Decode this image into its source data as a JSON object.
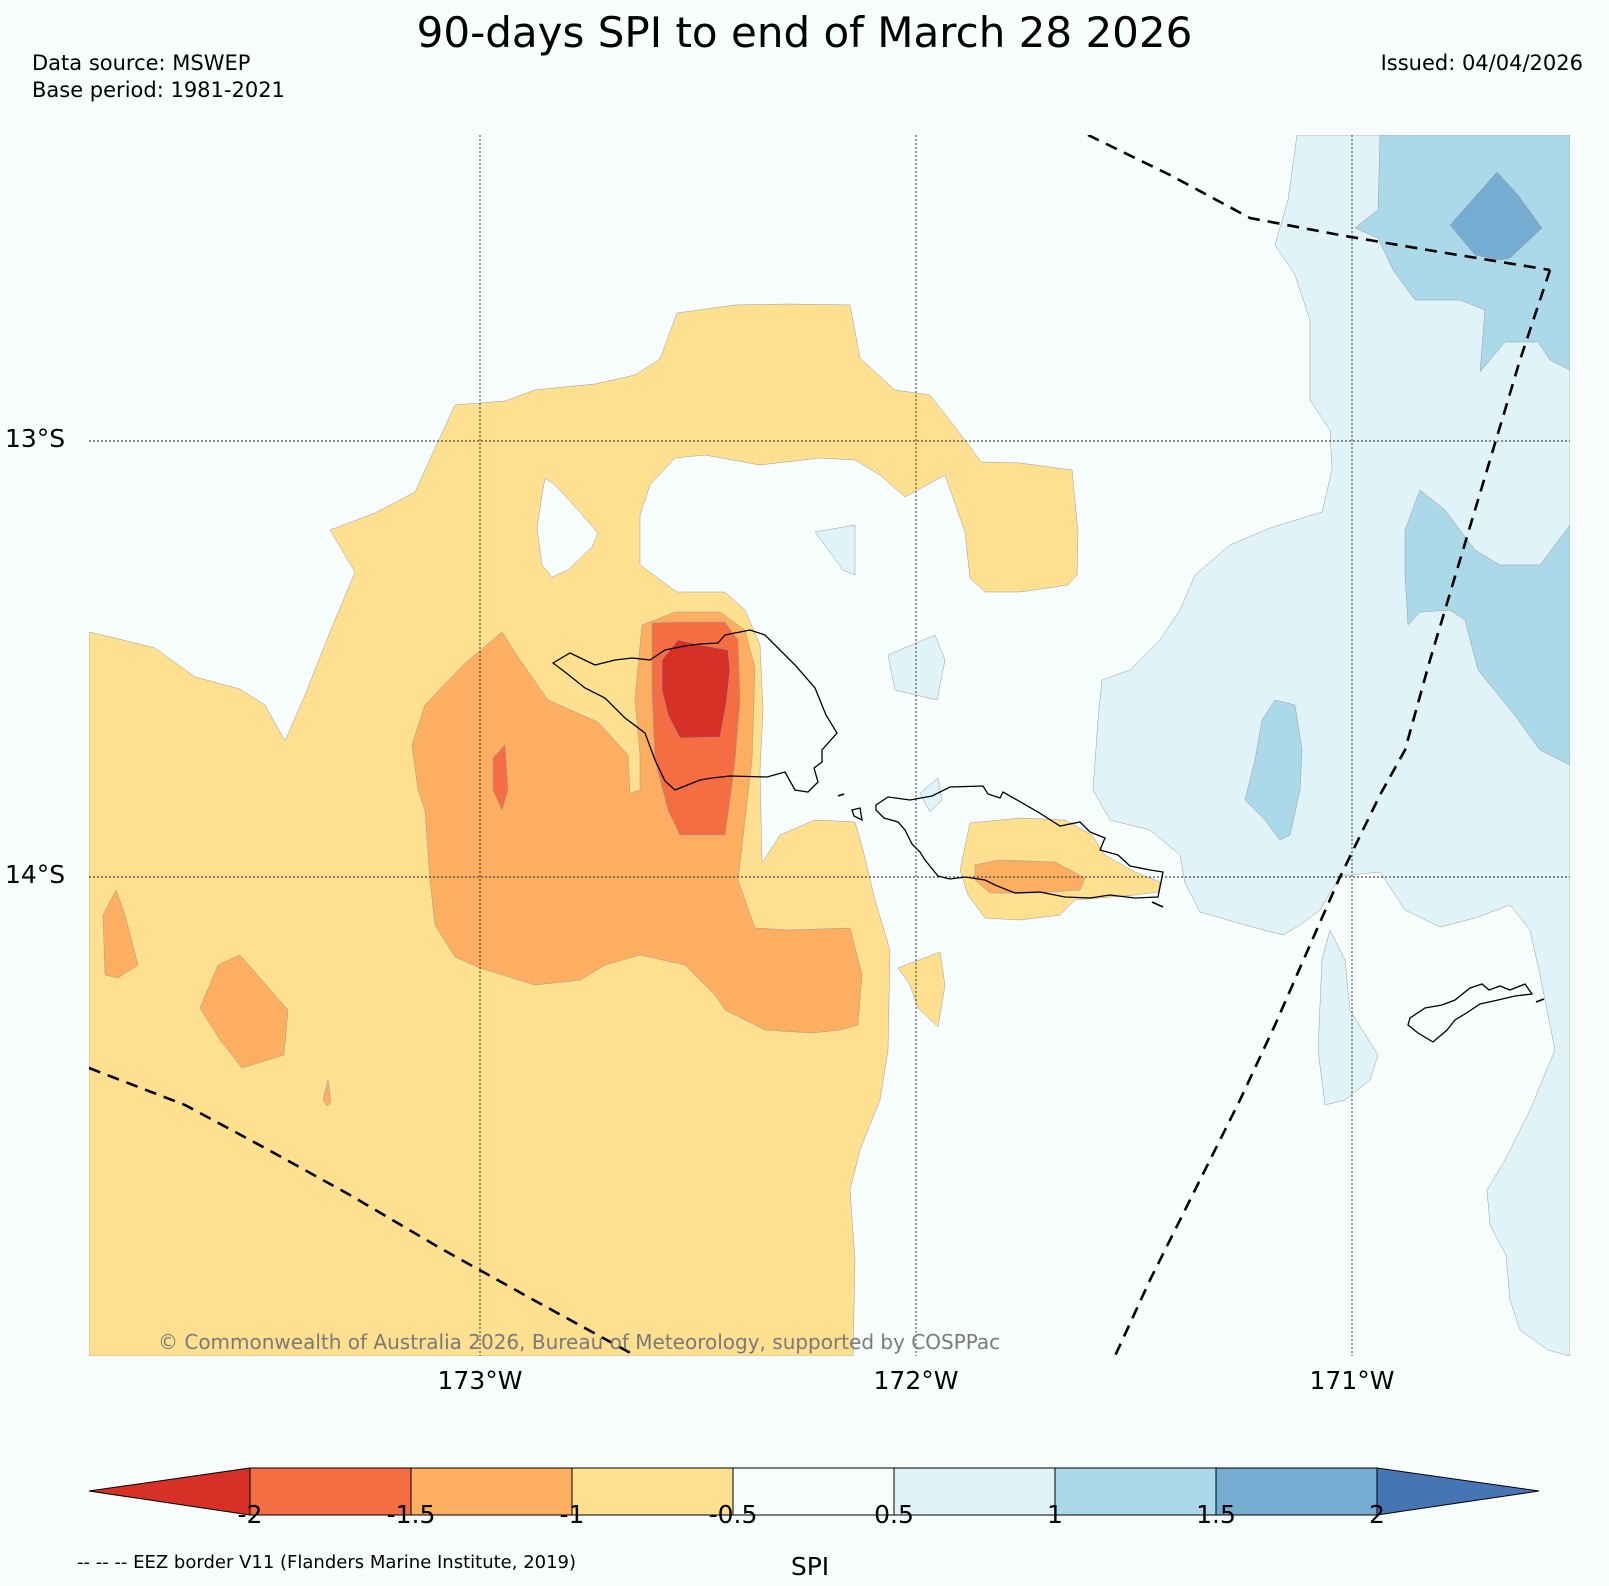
{
  "title": "90-days SPI to end of March 28 2026",
  "meta": {
    "data_source": "Data source: MSWEP",
    "base_period": "Base period: 1981-2021",
    "issued": "Issued: 04/04/2026"
  },
  "map": {
    "lat_labels": [
      "13°S",
      "14°S"
    ],
    "lon_labels": [
      "173°W",
      "172°W",
      "171°W"
    ],
    "copyright": "© Commonwealth of Australia 2026, Bureau of Meteorology, supported by COSPPac"
  },
  "colors": {
    "lt_m2": "#d73027",
    "m2_m15": "#f46d43",
    "m15_m1": "#fdae61",
    "m1_m05": "#fee090",
    "m05_05": "#f7fcfd",
    "p05_1": "#e0f3f8",
    "p1_15": "#abd9e9",
    "p15_2": "#74add1",
    "gt_2": "#4575b4"
  },
  "colorbar": {
    "ticks": [
      "-2",
      "-1.5",
      "-1",
      "-0.5",
      "0.5",
      "1",
      "1.5",
      "2"
    ],
    "label": "SPI"
  },
  "legend": {
    "eez_note": "-- -- -- EEZ border V11 (Flanders Marine Institute, 2019)"
  }
}
